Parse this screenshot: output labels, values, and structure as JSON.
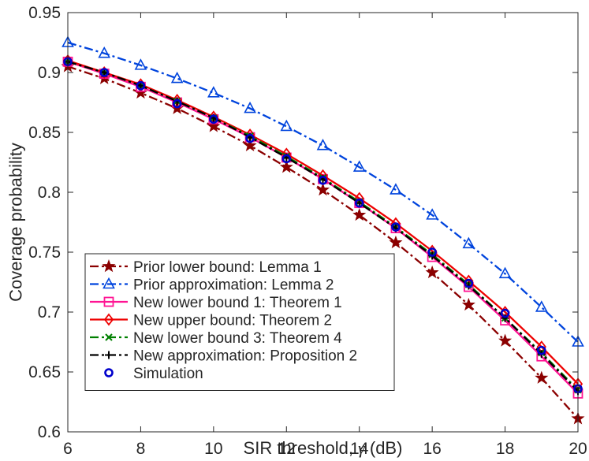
{
  "chart_data": {
    "type": "line",
    "title": "",
    "xlabel_text": "SIR threshold,",
    "xlabel_symbol": "γ",
    "xlabel_unit": "(dB)",
    "ylabel": "Coverage probability",
    "xlim": [
      6,
      20
    ],
    "ylim": [
      0.6,
      0.95
    ],
    "xticks": [
      6,
      8,
      10,
      12,
      14,
      16,
      18,
      20
    ],
    "yticks": [
      0.6,
      0.65,
      0.7,
      0.75,
      0.8,
      0.85,
      0.9,
      0.95
    ],
    "ytick_labels": [
      "0.6",
      "0.65",
      "0.7",
      "0.75",
      "0.8",
      "0.85",
      "0.9",
      "0.95"
    ],
    "grid": false,
    "legend_position": "bottom-left",
    "x": [
      6,
      7,
      8,
      9,
      10,
      11,
      12,
      13,
      14,
      15,
      16,
      17,
      18,
      19,
      20
    ],
    "series": [
      {
        "name": "Prior lower bound: Lemma 1",
        "color": "#8b0000",
        "dash": "dashdot",
        "marker": "star",
        "values": [
          0.905,
          0.895,
          0.883,
          0.87,
          0.855,
          0.839,
          0.821,
          0.802,
          0.781,
          0.758,
          0.733,
          0.706,
          0.676,
          0.645,
          0.611
        ]
      },
      {
        "name": "Prior approximation: Lemma 2",
        "color": "#0044dd",
        "dash": "dashdot",
        "marker": "triangle",
        "values": [
          0.925,
          0.916,
          0.906,
          0.895,
          0.883,
          0.87,
          0.855,
          0.839,
          0.821,
          0.802,
          0.781,
          0.757,
          0.732,
          0.704,
          0.675
        ]
      },
      {
        "name": "New lower bound 1: Theorem 1",
        "color": "#ff1493",
        "dash": "solid",
        "marker": "square",
        "values": [
          0.909,
          0.899,
          0.888,
          0.875,
          0.861,
          0.846,
          0.829,
          0.811,
          0.791,
          0.77,
          0.746,
          0.721,
          0.693,
          0.663,
          0.632
        ]
      },
      {
        "name": "New upper bound: Theorem 2",
        "color": "#ee0000",
        "dash": "solid",
        "marker": "diamond",
        "values": [
          0.91,
          0.9,
          0.89,
          0.877,
          0.863,
          0.848,
          0.832,
          0.814,
          0.795,
          0.774,
          0.751,
          0.726,
          0.7,
          0.671,
          0.64
        ]
      },
      {
        "name": "New lower bound 3: Theorem 4",
        "color": "#008000",
        "dash": "dashdot",
        "marker": "x",
        "values": [
          0.909,
          0.9,
          0.889,
          0.876,
          0.862,
          0.847,
          0.83,
          0.812,
          0.792,
          0.771,
          0.748,
          0.723,
          0.695,
          0.666,
          0.635
        ]
      },
      {
        "name": "New approximation: Proposition 2",
        "color": "#000000",
        "dash": "dashdot",
        "marker": "plus",
        "values": [
          0.909,
          0.9,
          0.889,
          0.876,
          0.862,
          0.846,
          0.829,
          0.811,
          0.791,
          0.77,
          0.747,
          0.722,
          0.695,
          0.665,
          0.634
        ]
      },
      {
        "name": "Simulation",
        "color": "#0000cc",
        "dash": "none",
        "marker": "circle",
        "values": [
          0.909,
          0.9,
          0.889,
          0.874,
          0.861,
          0.845,
          0.828,
          0.81,
          0.791,
          0.771,
          0.75,
          0.724,
          0.699,
          0.668,
          0.636
        ]
      }
    ]
  }
}
